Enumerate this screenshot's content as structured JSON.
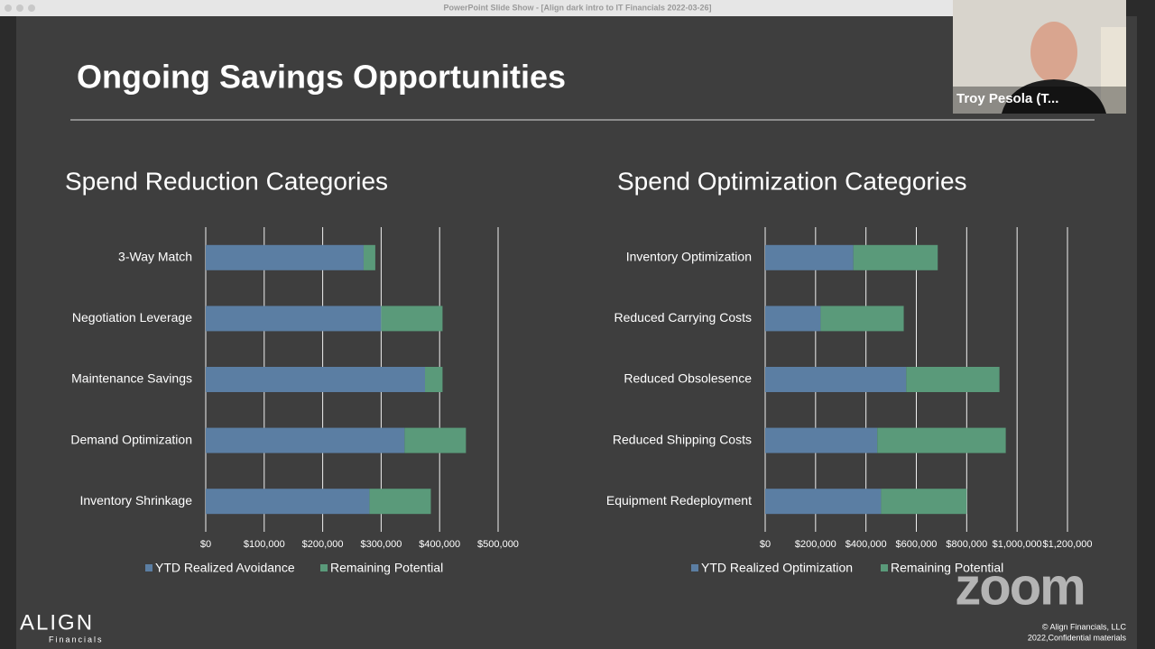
{
  "window_title": "PowerPoint Slide Show - [Align dark intro to IT Financials 2022-03-26]",
  "slide_title": "Ongoing Savings Opportunities",
  "participant_name": "Troy Pesola (T...",
  "watermark": "zoom",
  "logo": {
    "name": "ALIGN",
    "tagline": "Financials"
  },
  "footer": [
    "© Align Financials, LLC",
    "2022,Confidential materials"
  ],
  "chart_data": [
    {
      "type": "stacked_barh",
      "title": "Spend Reduction Categories",
      "categories": [
        "3-Way Match",
        "Negotiation Leverage",
        "Maintenance Savings",
        "Demand Optimization",
        "Inventory Shrinkage"
      ],
      "series": [
        {
          "name": "YTD Realized Avoidance",
          "color": "#5b7ea3",
          "values": [
            270000,
            300000,
            375000,
            340000,
            280000
          ]
        },
        {
          "name": "Remaining Potential",
          "color": "#5a9a7a",
          "values": [
            20000,
            105000,
            30000,
            105000,
            105000
          ]
        }
      ],
      "xlim": [
        0,
        500000
      ],
      "xticks": [
        {
          "value": 0,
          "label": "$0"
        },
        {
          "value": 100000,
          "label": "$100,000"
        },
        {
          "value": 200000,
          "label": "$200,000"
        },
        {
          "value": 300000,
          "label": "$300,000"
        },
        {
          "value": 400000,
          "label": "$400,000"
        },
        {
          "value": 500000,
          "label": "$500,000"
        }
      ],
      "grid": true,
      "legend": "bottom"
    },
    {
      "type": "stacked_barh",
      "title": "Spend Optimization Categories",
      "categories": [
        "Inventory Optimization",
        "Reduced Carrying Costs",
        "Reduced Obsolesence",
        "Reduced Shipping Costs",
        "Equipment Redeployment"
      ],
      "series": [
        {
          "name": "YTD Realized Optimization",
          "color": "#5b7ea3",
          "values": [
            350000,
            220000,
            560000,
            445000,
            460000
          ]
        },
        {
          "name": "Remaining Potential",
          "color": "#5a9a7a",
          "values": [
            335000,
            330000,
            370000,
            510000,
            340000
          ]
        }
      ],
      "xlim": [
        0,
        1200000
      ],
      "xticks": [
        {
          "value": 0,
          "label": "$0"
        },
        {
          "value": 200000,
          "label": "$200,000"
        },
        {
          "value": 400000,
          "label": "$400,000"
        },
        {
          "value": 600000,
          "label": "$600,000"
        },
        {
          "value": 800000,
          "label": "$800,000"
        },
        {
          "value": 1000000,
          "label": "$1,000,000"
        },
        {
          "value": 1200000,
          "label": "$1,200,000"
        }
      ],
      "grid": true,
      "legend": "bottom"
    }
  ]
}
